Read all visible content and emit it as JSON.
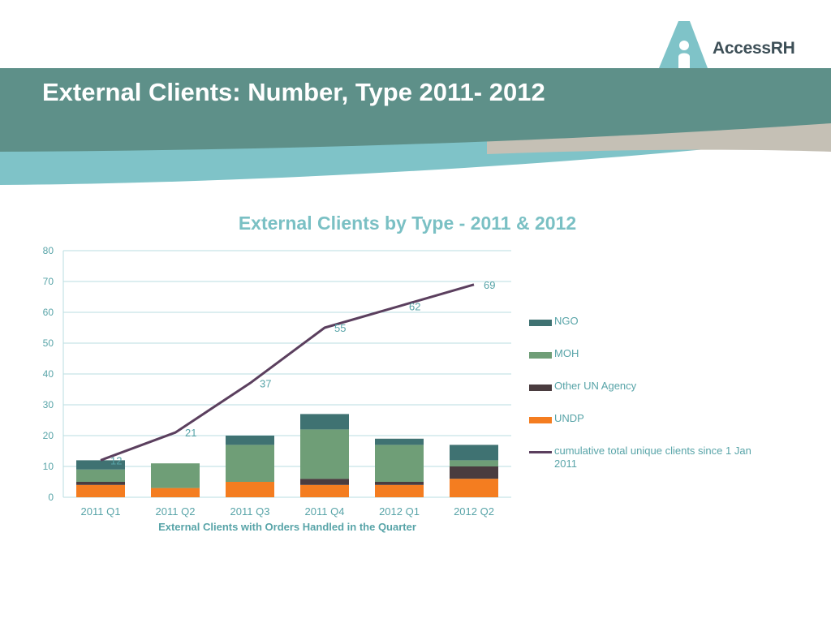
{
  "slide": {
    "title": "External Clients: Number, Type 2011- 2012"
  },
  "logo": {
    "text": "AccessRH"
  },
  "colors": {
    "banner_dark": "#5e9089",
    "banner_light": "#7fc3c8",
    "banner_grey": "#c5c0b5",
    "title_text": "#7ac0c4"
  },
  "chart_data": {
    "type": "bar",
    "stacked": true,
    "title": "External Clients by Type - 2011 & 2012",
    "xlabel": "External Clients with Orders Handled in the Quarter",
    "ylabel": "",
    "ylim": [
      0,
      80
    ],
    "yticks": [
      0,
      10,
      20,
      30,
      40,
      50,
      60,
      70,
      80
    ],
    "grid": true,
    "legend_position": "right",
    "categories": [
      "2011 Q1",
      "2011 Q2",
      "2011 Q3",
      "2011 Q4",
      "2012 Q1",
      "2012 Q2"
    ],
    "series": [
      {
        "name": "UNDP",
        "type": "bar",
        "color": "#f47d20",
        "values": [
          4,
          3,
          5,
          4,
          4,
          6
        ]
      },
      {
        "name": "Other UN Agency",
        "type": "bar",
        "color": "#4a3c3f",
        "values": [
          1,
          0,
          0,
          2,
          1,
          4
        ]
      },
      {
        "name": "MOH",
        "type": "bar",
        "color": "#6f9e77",
        "values": [
          4,
          8,
          12,
          16,
          12,
          2
        ]
      },
      {
        "name": "NGO",
        "type": "bar",
        "color": "#3f7272",
        "values": [
          3,
          0,
          3,
          5,
          2,
          5
        ]
      },
      {
        "name": "cumulative total unique clients since 1 Jan 2011",
        "type": "line",
        "color": "#5b3f5e",
        "values": [
          12,
          21,
          37,
          55,
          62,
          69
        ],
        "labels": [
          "12",
          "21",
          "37",
          "55",
          "62",
          "69"
        ]
      }
    ],
    "legend_order": [
      "NGO",
      "MOH",
      "Other UN Agency",
      "UNDP",
      "cumulative total unique clients since 1 Jan 2011"
    ]
  }
}
